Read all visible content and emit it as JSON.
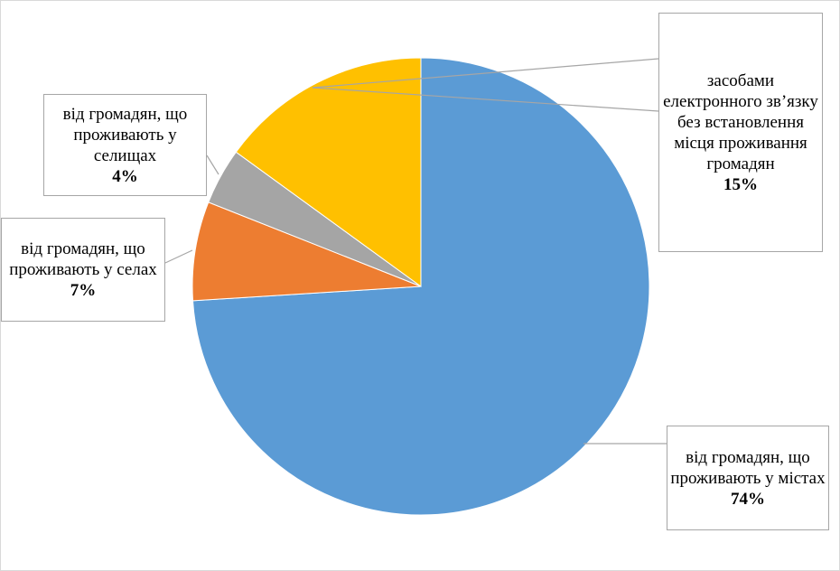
{
  "chart_data": {
    "type": "pie",
    "start_angle_deg": 0,
    "direction": "clockwise",
    "slices": [
      {
        "label": "від громадян, що проживають у містах",
        "value": 74,
        "display": "74%",
        "color": "#5b9bd5",
        "explode": 0
      },
      {
        "label": "від громадян, що проживають у селах",
        "value": 7,
        "display": "7%",
        "color": "#ed7d31",
        "explode": 0
      },
      {
        "label": "від громадян, що проживають у селищах",
        "value": 4,
        "display": "4%",
        "color": "#a5a5a5",
        "explode": 0
      },
      {
        "label": "засобами електронного зв’язку без встановлення місця проживання громадян",
        "value": 15,
        "display": "15%",
        "color": "#ffc000",
        "explode": 0
      }
    ]
  }
}
